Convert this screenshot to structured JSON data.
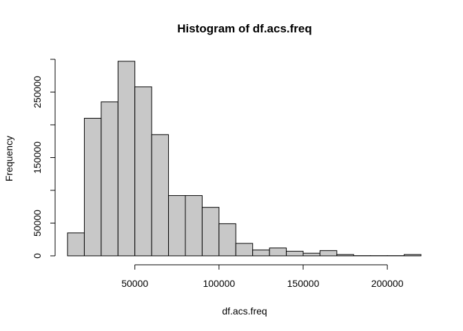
{
  "chart_data": {
    "type": "bar",
    "subtype": "histogram",
    "title": "Histogram of df.acs.freq",
    "xlabel": "df.acs.freq",
    "ylabel": "Frequency",
    "bin_edges": [
      10000,
      20000,
      30000,
      40000,
      50000,
      60000,
      70000,
      80000,
      90000,
      100000,
      110000,
      120000,
      130000,
      140000,
      150000,
      160000,
      170000,
      180000,
      190000,
      200000,
      210000,
      220000
    ],
    "counts": [
      35000,
      210000,
      235000,
      297000,
      258000,
      185000,
      92000,
      92000,
      74000,
      49000,
      19000,
      9000,
      12000,
      7000,
      4000,
      8000,
      2000,
      300,
      300,
      300,
      2000
    ],
    "xlim": [
      10000,
      220000
    ],
    "ylim": [
      0,
      300000
    ],
    "x_ticks": [
      50000,
      100000,
      150000,
      200000
    ],
    "x_tick_labels": [
      "50000",
      "100000",
      "150000",
      "200000"
    ],
    "y_ticks": [
      0,
      50000,
      150000,
      250000
    ],
    "y_tick_labels": [
      "0",
      "50000",
      "150000",
      "250000"
    ],
    "y_minor_ticks": [
      100000,
      200000
    ],
    "grid": false,
    "legend": "none",
    "colors": {
      "bar_fill": "#c8c8c8",
      "bar_stroke": "#000000",
      "axis": "#000000",
      "background": "#ffffff"
    }
  }
}
